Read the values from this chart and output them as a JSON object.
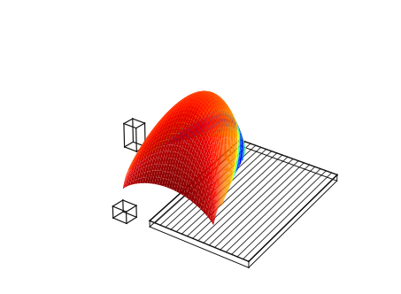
{
  "background_color": "#ffffff",
  "surface_cmap": "jet",
  "surface_alpha": 0.95,
  "grid_color": "#111111",
  "box_color": "#111111",
  "figure_size": [
    4.53,
    3.32
  ],
  "dpi": 100
}
